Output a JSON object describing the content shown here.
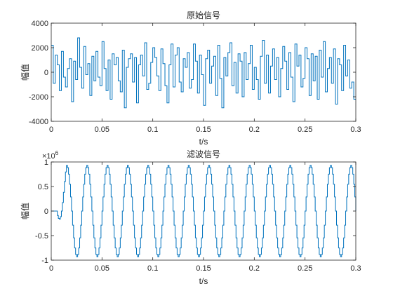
{
  "figure": {
    "background": "#ffffff",
    "axis_color": "#262626",
    "line_color": "#0072bd"
  },
  "chart_data": [
    {
      "type": "line",
      "title": "原始信号",
      "xlabel": "t/s",
      "ylabel": "幅值",
      "xlim": [
        0,
        0.3
      ],
      "ylim": [
        -4000,
        4000
      ],
      "xticks": [
        0,
        0.05,
        0.1,
        0.15,
        0.2,
        0.25,
        0.3
      ],
      "xtick_labels": [
        "0",
        "0.05",
        "0.1",
        "0.15",
        "0.2",
        "0.25",
        "0.3"
      ],
      "yticks": [
        -4000,
        -2000,
        0,
        2000,
        4000
      ],
      "ytick_labels": [
        "-4000",
        "-2000",
        "0",
        "2000",
        "4000"
      ],
      "step": true,
      "series": [
        {
          "color": "#0072bd",
          "x": [
            0,
            0.002,
            0.004,
            0.006,
            0.008,
            0.01,
            0.012,
            0.014,
            0.016,
            0.018,
            0.02,
            0.022,
            0.024,
            0.026,
            0.028,
            0.03,
            0.032,
            0.034,
            0.036,
            0.038,
            0.04,
            0.042,
            0.044,
            0.046,
            0.048,
            0.05,
            0.052,
            0.054,
            0.056,
            0.058,
            0.06,
            0.062,
            0.064,
            0.066,
            0.068,
            0.07,
            0.072,
            0.074,
            0.076,
            0.078,
            0.08,
            0.082,
            0.084,
            0.086,
            0.088,
            0.09,
            0.092,
            0.094,
            0.096,
            0.098,
            0.1,
            0.102,
            0.104,
            0.106,
            0.108,
            0.11,
            0.112,
            0.114,
            0.116,
            0.118,
            0.12,
            0.122,
            0.124,
            0.126,
            0.128,
            0.13,
            0.132,
            0.134,
            0.136,
            0.138,
            0.14,
            0.142,
            0.144,
            0.146,
            0.148,
            0.15,
            0.152,
            0.154,
            0.156,
            0.158,
            0.16,
            0.162,
            0.164,
            0.166,
            0.168,
            0.17,
            0.172,
            0.174,
            0.176,
            0.178,
            0.18,
            0.182,
            0.184,
            0.186,
            0.188,
            0.19,
            0.192,
            0.194,
            0.196,
            0.198,
            0.2,
            0.202,
            0.204,
            0.206,
            0.208,
            0.21,
            0.212,
            0.214,
            0.216,
            0.218,
            0.22,
            0.222,
            0.224,
            0.226,
            0.228,
            0.23,
            0.232,
            0.234,
            0.236,
            0.238,
            0.24,
            0.242,
            0.244,
            0.246,
            0.248,
            0.25,
            0.252,
            0.254,
            0.256,
            0.258,
            0.26,
            0.262,
            0.264,
            0.266,
            0.268,
            0.27,
            0.272,
            0.274,
            0.276,
            0.278,
            0.28,
            0.282,
            0.284,
            0.286,
            0.288,
            0.29,
            0.292,
            0.294,
            0.296,
            0.298
          ],
          "values": [
            2200,
            -900,
            1400,
            600,
            -1500,
            1700,
            -400,
            -1200,
            300,
            1100,
            -2400,
            900,
            -600,
            2800,
            400,
            -1300,
            2100,
            -200,
            700,
            -1900,
            1300,
            -700,
            1700,
            -400,
            -1100,
            2500,
            300,
            -1500,
            1000,
            -2200,
            1500,
            600,
            1200,
            -700,
            -1600,
            1800,
            -2900,
            400,
            1100,
            1500,
            -800,
            1200,
            -2500,
            600,
            1400,
            -300,
            2400,
            -1400,
            -900,
            800,
            2000,
            1200,
            -300,
            -1500,
            1900,
            700,
            -1100,
            -2500,
            600,
            2300,
            -1200,
            1400,
            2000,
            -800,
            -1600,
            1100,
            400,
            1600,
            -1300,
            -600,
            2300,
            900,
            -1700,
            1400,
            -200,
            -2700,
            1100,
            1800,
            -900,
            500,
            1300,
            -1900,
            2200,
            -500,
            -2900,
            1200,
            -300,
            1600,
            2400,
            -1100,
            800,
            -1700,
            1500,
            900,
            -2000,
            1600,
            -600,
            700,
            2200,
            -1400,
            400,
            -600,
            -2200,
            1300,
            2600,
            -900,
            1400,
            -1700,
            500,
            1900,
            -600,
            1200,
            -2000,
            300,
            2100,
            900,
            -1400,
            1600,
            -400,
            -2400,
            2300,
            500,
            1400,
            -1200,
            -500,
            2000,
            1100,
            -1900,
            1500,
            -700,
            1300,
            -2200,
            1800,
            -400,
            2500,
            -1600,
            300,
            1200,
            -900,
            1900,
            -2600,
            1100,
            600,
            -1500,
            2200,
            -300,
            1000,
            -1300,
            -800,
            -2200
          ]
        }
      ]
    },
    {
      "type": "line",
      "title": "滤波信号",
      "xlabel": "t/s",
      "ylabel": "幅值",
      "y_exponent_label": "×10",
      "y_exponent_power": "6",
      "xlim": [
        0,
        0.3
      ],
      "ylim": [
        -1,
        1
      ],
      "xticks": [
        0,
        0.05,
        0.1,
        0.15,
        0.2,
        0.25,
        0.3
      ],
      "xtick_labels": [
        "0",
        "0.05",
        "0.1",
        "0.15",
        "0.2",
        "0.25",
        "0.3"
      ],
      "yticks": [
        -1,
        -0.5,
        0,
        0.5,
        1
      ],
      "ytick_labels": [
        "-1",
        "-0.5",
        "0",
        "0.5",
        "1"
      ],
      "step": true,
      "series": [
        {
          "color": "#0072bd",
          "signal": "sine",
          "frequency_hz": 50,
          "amplitude": 0.93,
          "peak_time": 0.015,
          "start_delay": 0.005,
          "sample_interval": 0.001,
          "ramp_until": 0.015
        }
      ]
    }
  ]
}
